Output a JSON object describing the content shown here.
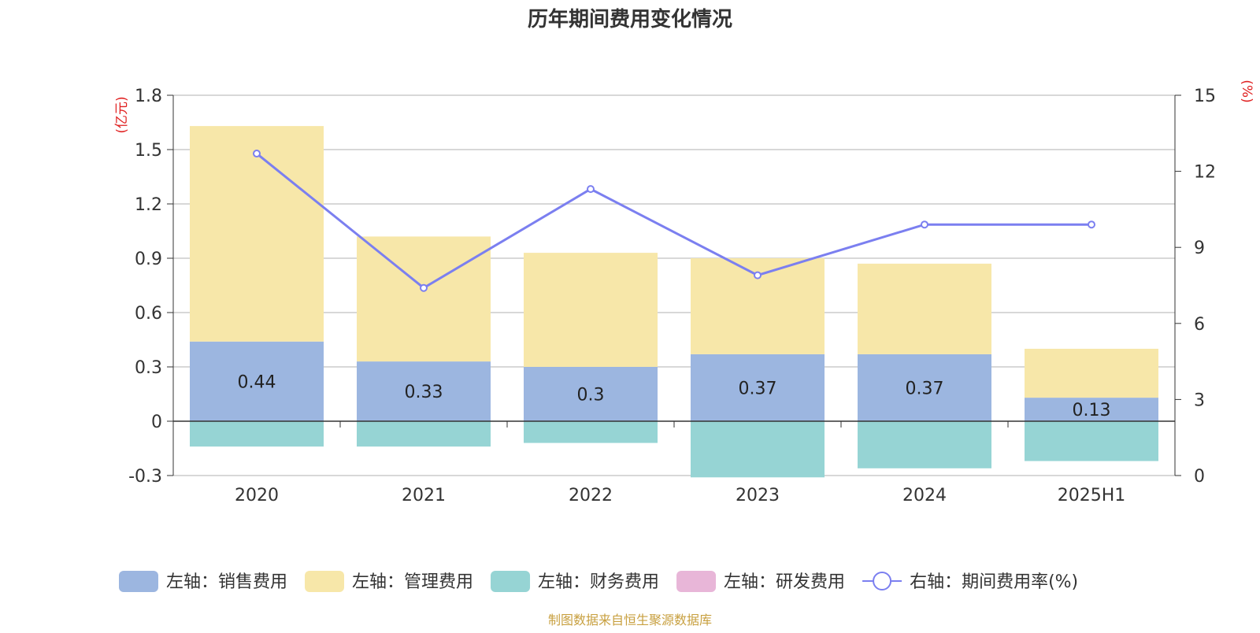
{
  "chart_data": {
    "type": "bar",
    "title": "历年期间费用变化情况",
    "categories": [
      "2020",
      "2021",
      "2022",
      "2023",
      "2024",
      "2025H1"
    ],
    "stacked": true,
    "y_left": {
      "unit_label": "(亿元)",
      "ylim": [
        -0.3,
        1.8
      ],
      "ticks": [
        "-0.3",
        "0",
        "0.3",
        "0.6",
        "0.9",
        "1.2",
        "1.5",
        "1.8"
      ]
    },
    "y_right": {
      "unit_label": "(%)",
      "ylim": [
        0,
        15
      ],
      "ticks": [
        "0",
        "3",
        "6",
        "9",
        "12",
        "15"
      ]
    },
    "grid": true,
    "legend_position": "bottom",
    "series": [
      {
        "name": "左轴：销售费用",
        "axis": "left",
        "type": "bar",
        "color": "#9cb6e0",
        "values": [
          0.44,
          0.33,
          0.3,
          0.37,
          0.37,
          0.13
        ],
        "labels": [
          "0.44",
          "0.33",
          "0.3",
          "0.37",
          "0.37",
          "0.13"
        ]
      },
      {
        "name": "左轴：管理费用",
        "axis": "left",
        "type": "bar",
        "color": "#f7e7a9",
        "values": [
          1.19,
          0.69,
          0.63,
          0.53,
          0.5,
          0.27
        ]
      },
      {
        "name": "左轴：财务费用",
        "axis": "left",
        "type": "bar",
        "color": "#96d4d4",
        "values": [
          -0.14,
          -0.14,
          -0.12,
          -0.31,
          -0.26,
          -0.22
        ]
      },
      {
        "name": "左轴：研发费用",
        "axis": "left",
        "type": "bar",
        "color": "#e8b6d8",
        "values": [
          0,
          0,
          0,
          0,
          0,
          0
        ]
      },
      {
        "name": "右轴：期间费用率(%)",
        "axis": "right",
        "type": "line",
        "color": "#7b7ff0",
        "values": [
          12.7,
          7.4,
          11.3,
          7.9,
          9.9,
          9.9
        ]
      }
    ],
    "source": "制图数据来自恒生聚源数据库"
  }
}
